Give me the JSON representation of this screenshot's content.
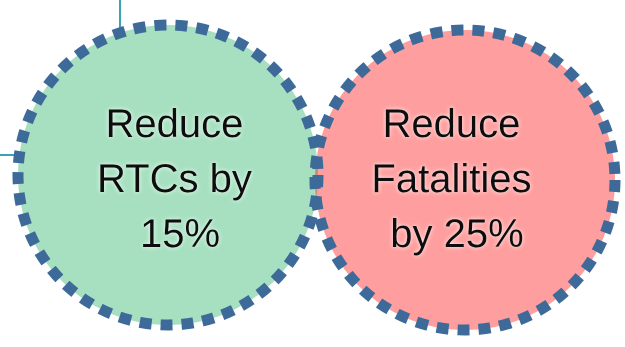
{
  "diagram": {
    "type": "venn",
    "circles": [
      {
        "id": "rtcs",
        "lines": [
          "Reduce",
          "RTCs by",
          "15%"
        ],
        "fill": "#a6e0c0"
      },
      {
        "id": "fatalities",
        "lines": [
          "Reduce",
          "Fatalities",
          "by 25%"
        ],
        "fill": "#ff9e9e"
      }
    ],
    "overlap_fill": "#c48a72",
    "border_color": "#3d6a99",
    "connector_color": "#3aa3b3"
  }
}
